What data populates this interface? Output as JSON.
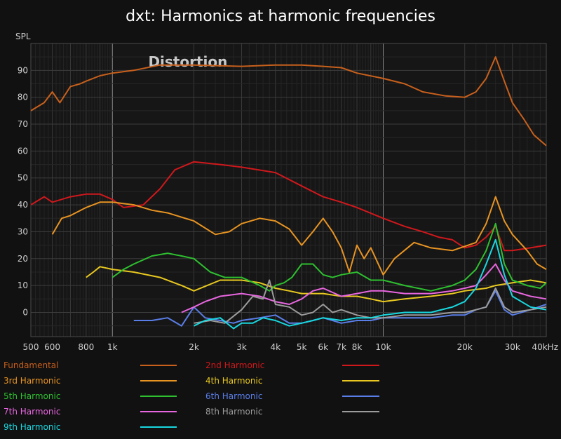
{
  "chart_data": {
    "type": "line",
    "title": "dxt: Harmonics at harmonic frequencies",
    "ylabel": "SPL",
    "xlabel": "",
    "x_scale": "log",
    "xlim": [
      500,
      40000
    ],
    "ylim": [
      -9,
      100
    ],
    "y_ticks": [
      0,
      10,
      20,
      30,
      40,
      50,
      60,
      70,
      80,
      90
    ],
    "x_ticks": [
      {
        "value": 500,
        "label": "500"
      },
      {
        "value": 600,
        "label": "600"
      },
      {
        "value": 800,
        "label": "800"
      },
      {
        "value": 1000,
        "label": "1k"
      },
      {
        "value": 2000,
        "label": "2k"
      },
      {
        "value": 3000,
        "label": "3k"
      },
      {
        "value": 4000,
        "label": "4k"
      },
      {
        "value": 5000,
        "label": "5k"
      },
      {
        "value": 6000,
        "label": "6k"
      },
      {
        "value": 7000,
        "label": "7k"
      },
      {
        "value": 8000,
        "label": "8k"
      },
      {
        "value": 10000,
        "label": "10k"
      },
      {
        "value": 20000,
        "label": "20k"
      },
      {
        "value": 30000,
        "label": "30k"
      },
      {
        "value": 40000,
        "label": "40kHz"
      }
    ],
    "grid": true,
    "legend_position": "bottom",
    "annotation": {
      "text": "Distortion",
      "x": 1900,
      "y": 95
    },
    "series": [
      {
        "name": "Fundamental",
        "color": "#c8601c",
        "x": [
          500,
          560,
          600,
          640,
          700,
          760,
          800,
          900,
          1000,
          1200,
          1500,
          2000,
          3000,
          4000,
          5000,
          6000,
          7000,
          8000,
          10000,
          12000,
          14000,
          17000,
          20000,
          22000,
          24000,
          26000,
          28000,
          30000,
          33000,
          36000,
          40000
        ],
        "y": [
          75,
          78,
          82,
          78,
          84,
          85,
          86,
          88,
          89,
          90,
          92,
          92,
          91.5,
          92,
          92,
          91.5,
          91,
          89,
          87,
          85,
          82,
          80.5,
          80,
          82,
          87,
          95,
          86,
          78,
          72,
          66,
          62
        ]
      },
      {
        "name": "2nd Harmonic",
        "color": "#d0181c",
        "x": [
          500,
          560,
          600,
          700,
          800,
          900,
          1000,
          1100,
          1300,
          1500,
          1700,
          2000,
          2500,
          3000,
          4000,
          5000,
          6000,
          7000,
          8000,
          10000,
          12000,
          14000,
          16000,
          18000,
          20000,
          22000,
          24000,
          26000,
          28000,
          30000,
          35000,
          40000
        ],
        "y": [
          40,
          43,
          41,
          43,
          44,
          44,
          42,
          39,
          40,
          46,
          53,
          56,
          55,
          54,
          52,
          47,
          43,
          41,
          39,
          35,
          32,
          30,
          28,
          27,
          24,
          25,
          28,
          32,
          23,
          23,
          24,
          25
        ]
      },
      {
        "name": "3rd Harmonic",
        "color": "#e89422",
        "x": [
          600,
          650,
          700,
          800,
          900,
          1000,
          1200,
          1400,
          1600,
          2000,
          2400,
          2700,
          3000,
          3500,
          4000,
          4500,
          5000,
          5500,
          6000,
          6500,
          7000,
          7500,
          8000,
          8500,
          9000,
          10000,
          11000,
          13000,
          15000,
          18000,
          22000,
          24000,
          26000,
          28000,
          30000,
          34000,
          37000,
          40000
        ],
        "y": [
          29,
          35,
          36,
          39,
          41,
          41,
          40,
          38,
          37,
          34,
          29,
          30,
          33,
          35,
          34,
          31,
          25,
          30,
          35,
          30,
          24,
          15,
          25,
          20,
          24,
          14,
          20,
          26,
          24,
          23,
          26,
          33,
          43,
          34,
          29,
          23,
          18,
          16
        ]
      },
      {
        "name": "4th Harmonic",
        "color": "#e8c820",
        "x": [
          800,
          850,
          900,
          1000,
          1200,
          1500,
          1800,
          2000,
          2500,
          3000,
          3500,
          4000,
          4500,
          5000,
          6000,
          7000,
          8000,
          9000,
          10000,
          12000,
          15000,
          18000,
          20000,
          24000,
          26000,
          30000,
          35000,
          40000
        ],
        "y": [
          13,
          15,
          17,
          16,
          15,
          13,
          10,
          8,
          12,
          12,
          11,
          9,
          8,
          7,
          7,
          6,
          6,
          5,
          4,
          5,
          6,
          7,
          8,
          9,
          10,
          11,
          12,
          11
        ]
      },
      {
        "name": "5th Harmonic",
        "color": "#2ec030",
        "x": [
          1000,
          1100,
          1200,
          1400,
          1600,
          1800,
          2000,
          2300,
          2600,
          3000,
          3500,
          3800,
          4000,
          4300,
          4600,
          5000,
          5500,
          6000,
          6500,
          7000,
          8000,
          9000,
          10000,
          12000,
          15000,
          18000,
          20000,
          22000,
          24000,
          26000,
          28000,
          30000,
          34000,
          38000,
          40000
        ],
        "y": [
          13,
          16,
          18,
          21,
          22,
          21,
          20,
          15,
          13,
          13,
          10,
          8,
          10,
          11,
          13,
          18,
          18,
          14,
          13,
          14,
          15,
          12,
          12,
          10,
          8,
          10,
          12,
          16,
          23,
          33,
          18,
          12,
          10,
          9,
          11
        ]
      },
      {
        "name": "6th Harmonic",
        "color": "#5a7ee8",
        "x": [
          1200,
          1400,
          1600,
          1800,
          2000,
          2200,
          2500,
          2800,
          3000,
          3500,
          4000,
          4500,
          5000,
          5500,
          6000,
          6500,
          7000,
          8000,
          9000,
          10000,
          12000,
          15000,
          18000,
          20000,
          22000,
          24000,
          26000,
          28000,
          30000,
          35000,
          40000
        ],
        "y": [
          -3,
          -3,
          -2,
          -5,
          2,
          -2,
          -3,
          -4,
          -3,
          -2,
          -1,
          -4,
          -4,
          -3,
          -2,
          -3,
          -4,
          -3,
          -3,
          -2,
          -2,
          -2,
          -1,
          -1,
          1,
          2,
          8,
          1,
          -1,
          1,
          3
        ]
      },
      {
        "name": "7th Harmonic",
        "color": "#e866e0",
        "x": [
          1800,
          2000,
          2200,
          2500,
          3000,
          3500,
          4000,
          4500,
          5000,
          5500,
          6000,
          7000,
          8000,
          9000,
          10000,
          12000,
          15000,
          18000,
          20000,
          22000,
          24000,
          26000,
          28000,
          30000,
          35000,
          40000
        ],
        "y": [
          0,
          2,
          4,
          6,
          7,
          6,
          4,
          3,
          5,
          8,
          9,
          6,
          7,
          8,
          8,
          7,
          7,
          8,
          9,
          10,
          14,
          18,
          12,
          8,
          6,
          5
        ]
      },
      {
        "name": "8th Harmonic",
        "color": "#9c9c9c",
        "x": [
          2000,
          2300,
          2600,
          3000,
          3300,
          3600,
          3800,
          4000,
          4500,
          5000,
          5500,
          6000,
          6500,
          7000,
          8000,
          9000,
          10000,
          12000,
          15000,
          18000,
          20000,
          22000,
          24000,
          26000,
          28000,
          30000,
          35000,
          40000
        ],
        "y": [
          -4,
          -3,
          -4,
          1,
          6,
          5,
          12,
          3,
          2,
          -1,
          0,
          3,
          0,
          1,
          -1,
          -2,
          -2,
          -1,
          -1,
          0,
          0,
          1,
          2,
          9,
          2,
          0,
          1,
          2
        ]
      },
      {
        "name": "9th Harmonic",
        "color": "#18d8e0",
        "x": [
          2000,
          2200,
          2500,
          2800,
          3000,
          3300,
          3600,
          4000,
          4500,
          5000,
          5500,
          6000,
          7000,
          8000,
          9000,
          10000,
          12000,
          15000,
          18000,
          20000,
          22000,
          24000,
          26000,
          28000,
          30000,
          35000,
          40000
        ],
        "y": [
          -5,
          -3,
          -2,
          -6,
          -4,
          -4,
          -2,
          -3,
          -5,
          -4,
          -3,
          -2,
          -3,
          -2,
          -2,
          -1,
          0,
          0,
          2,
          4,
          9,
          18,
          27,
          14,
          6,
          2,
          1
        ]
      }
    ]
  }
}
